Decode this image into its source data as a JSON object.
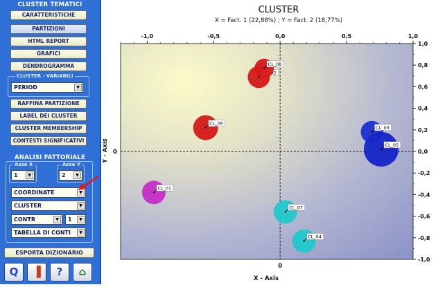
{
  "sidebar": {
    "tematici_title": "CLUSTER TEMATICI",
    "buttons_top": [
      "CARATTERISTICHE",
      "PARTIZIONI",
      "HTML REPORT",
      "GRAFICI",
      "DENDROGRAMMA"
    ],
    "variabili_label": "CLUSTER - VARIABILI",
    "variabili_value": "PERIOD",
    "buttons_mid": [
      "RAFFINA PARTIZIONE",
      "LABEL DEI CLUSTER",
      "CLUSTER MEMBERSHIP",
      "CONTESTI SIGNIFICATIVI"
    ],
    "fattoriale_title": "ANALISI FATTORIALE",
    "asse_x_label": "Asse X",
    "asse_x_value": "1",
    "asse_y_label": "Asse Y",
    "asse_y_value": "2",
    "coordinate_value": "COORDINATE",
    "cluster_value": "CLUSTER",
    "contr_value": "CONTR",
    "contr_num": "1",
    "tabella_value": "TABELLA DI CONTI",
    "esporta_label": "ESPORTA DIZIONARIO",
    "toolbar_icons": [
      "q-icon",
      "chart-check-icon",
      "help-icon",
      "home-icon"
    ],
    "toolbar_glyphs": [
      "Q",
      "▐",
      "?",
      "⌂"
    ]
  },
  "chart_data": {
    "type": "scatter",
    "title": "CLUSTER",
    "subtitle": "X = Fact. 1 (22,88%) ; Y = Fact. 2 (18,77%)",
    "xlabel": "X - Axis",
    "ylabel": "Y - Axis",
    "xlim": [
      -1.2,
      1.0
    ],
    "ylim": [
      -1.0,
      1.0
    ],
    "x_ticks": [
      -1.0,
      -0.5,
      0.0,
      0.5,
      1.0
    ],
    "x_tick_labels": [
      "-1,0",
      "-0,5",
      "0,0",
      "0,5",
      "1,0"
    ],
    "y_ticks": [
      1.0,
      0.8,
      0.6,
      0.4,
      0.2,
      0.0,
      -0.2,
      -0.4,
      -0.6,
      -0.8,
      -1.0
    ],
    "y_tick_labels": [
      "1,0",
      "0,8",
      "0,6",
      "0,4",
      "0,2",
      "0,0",
      "-0,2",
      "-0,4",
      "-0,6",
      "-0,8",
      "-1,0"
    ],
    "y_zero_label": "0",
    "x_zero_label": "0",
    "points": [
      {
        "label": "CL_01",
        "x": -0.95,
        "y": -0.38,
        "size": 17,
        "color": "#c62ec6"
      },
      {
        "label": "CL_02",
        "x": -0.16,
        "y": 0.69,
        "size": 16,
        "color": "#d41a1a"
      },
      {
        "label": "CL_03",
        "x": 0.69,
        "y": 0.18,
        "size": 16,
        "color": "#1e2fd0"
      },
      {
        "label": "CL_04",
        "x": 0.18,
        "y": -0.83,
        "size": 17,
        "color": "#21c8cc"
      },
      {
        "label": "CL_05",
        "x": 0.76,
        "y": 0.02,
        "size": 25,
        "color": "#1525c6"
      },
      {
        "label": "CL_06",
        "x": -0.56,
        "y": 0.22,
        "size": 18,
        "color": "#d41a1a"
      },
      {
        "label": "CL_07",
        "x": 0.04,
        "y": -0.56,
        "size": 17,
        "color": "#21c8cc"
      },
      {
        "label": "CL_08",
        "x": -0.12,
        "y": 0.77,
        "size": 14,
        "color": "#d41a1a"
      }
    ]
  }
}
